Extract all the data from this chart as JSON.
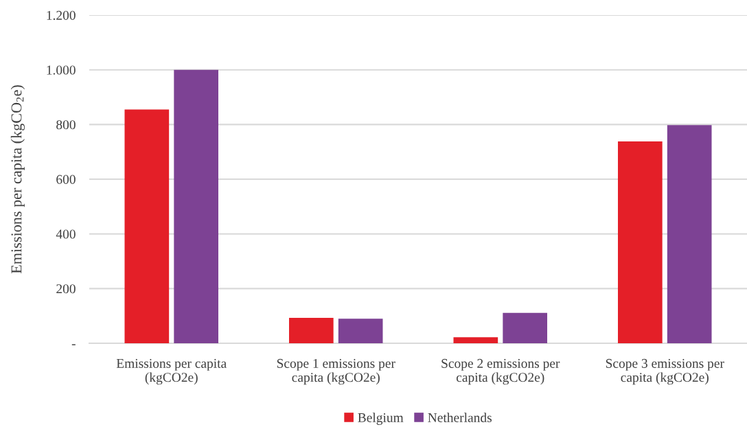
{
  "chart_data": {
    "type": "bar",
    "categories": [
      "Emissions per capita\n(kgCO2e)",
      "Scope 1 emissions per\ncapita (kgCO2e)",
      "Scope 2 emissions per\ncapita (kgCO2e)",
      "Scope 3 emissions per\ncapita (kgCO2e)"
    ],
    "series": [
      {
        "name": "Belgium",
        "color": "#e41f28",
        "values": [
          855,
          93,
          22,
          738
        ]
      },
      {
        "name": "Netherlands",
        "color": "#7d4294",
        "values": [
          1000,
          90,
          111,
          798
        ]
      }
    ],
    "ylabel": "Emissions per capita (kgCO$_{2}$e)",
    "ylim": [
      0,
      1200
    ],
    "yticks": [
      {
        "value": 0,
        "label": "-"
      },
      200,
      400,
      600,
      800,
      {
        "value": 1000,
        "label": "1.000"
      },
      {
        "value": 1200,
        "label": "1.200"
      }
    ],
    "grid": "y",
    "legend": "bottom"
  }
}
